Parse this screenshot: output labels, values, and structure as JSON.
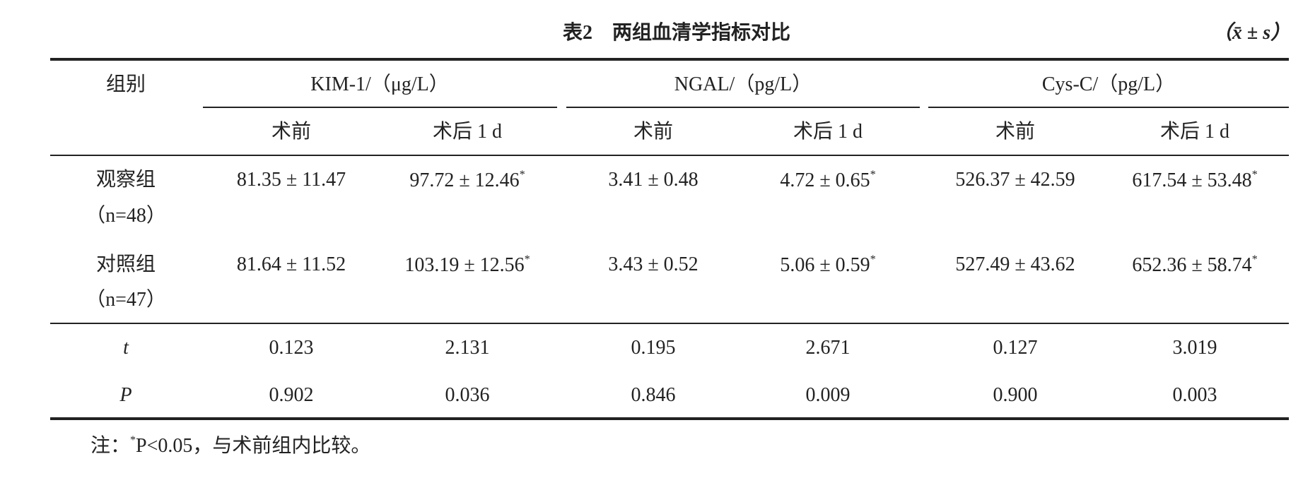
{
  "title": "表2　两组血清学指标对比",
  "unit_note": "（x̄ ± s）",
  "table": {
    "group_header": "组别",
    "columns": [
      {
        "name": "KIM-1/（μg/L）",
        "sub": [
          "术前",
          "术后 1 d"
        ]
      },
      {
        "name": "NGAL/（pg/L）",
        "sub": [
          "术前",
          "术后 1 d"
        ]
      },
      {
        "name": "Cys-C/（pg/L）",
        "sub": [
          "术前",
          "术后 1 d"
        ]
      }
    ],
    "rows": [
      {
        "group": "观察组",
        "n": "（n=48）",
        "cells": [
          {
            "value": "81.35 ± 11.47"
          },
          {
            "value": "97.72 ± 12.46",
            "mark": "*"
          },
          {
            "value": "3.41 ± 0.48"
          },
          {
            "value": "4.72 ± 0.65",
            "mark": "*"
          },
          {
            "value": "526.37 ± 42.59"
          },
          {
            "value": "617.54 ± 53.48",
            "mark": "*"
          }
        ]
      },
      {
        "group": "对照组",
        "n": "（n=47）",
        "cells": [
          {
            "value": "81.64 ± 11.52"
          },
          {
            "value": "103.19 ± 12.56",
            "mark": "*"
          },
          {
            "value": "3.43 ± 0.52"
          },
          {
            "value": "5.06 ± 0.59",
            "mark": "*"
          },
          {
            "value": "527.49 ± 43.62"
          },
          {
            "value": "652.36 ± 58.74",
            "mark": "*"
          }
        ]
      }
    ],
    "stats": [
      {
        "label": "t",
        "values": [
          "0.123",
          "2.131",
          "0.195",
          "2.671",
          "0.127",
          "3.019"
        ]
      },
      {
        "label": "P",
        "values": [
          "0.902",
          "0.036",
          "0.846",
          "0.009",
          "0.900",
          "0.003"
        ]
      }
    ]
  },
  "note": {
    "label": "注：",
    "mark": "*",
    "text": "P<0.05，与术前组内比较。"
  }
}
